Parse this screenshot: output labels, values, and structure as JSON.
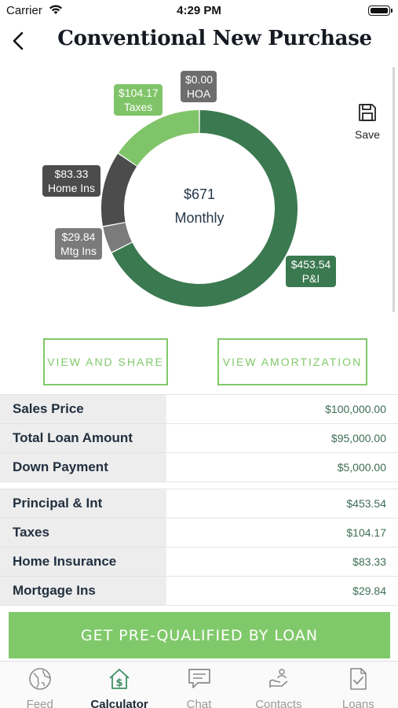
{
  "status": {
    "carrier": "Carrier",
    "time": "4:29 PM"
  },
  "nav": {
    "title": "Conventional New Purchase"
  },
  "save": {
    "label": "Save"
  },
  "chart_data": {
    "type": "pie",
    "center_value": "$671",
    "center_label": "Monthly",
    "slices": [
      {
        "name": "P&I",
        "value": 453.54,
        "label": "$453.54",
        "color": "#3b7950"
      },
      {
        "name": "Mtg Ins",
        "value": 29.84,
        "label": "$29.84",
        "color": "#7b7b7b"
      },
      {
        "name": "Home Ins",
        "value": 83.33,
        "label": "$83.33",
        "color": "#4c4c4c"
      },
      {
        "name": "Taxes",
        "value": 104.17,
        "label": "$104.17",
        "color": "#80c469"
      },
      {
        "name": "HOA",
        "value": 0.0,
        "label": "$0.00",
        "color": "#6d6d6d"
      }
    ]
  },
  "buttons": {
    "view_share": "VIEW AND SHARE",
    "view_amortization": "VIEW AMORTIZATION",
    "cta": "GET PRE-QUALIFIED BY LOAN"
  },
  "loan_rows": [
    {
      "label": "Sales Price",
      "value": "$100,000.00"
    },
    {
      "label": "Total Loan Amount",
      "value": "$95,000.00"
    },
    {
      "label": "Down Payment",
      "value": "$5,000.00"
    }
  ],
  "payment_rows": [
    {
      "label": "Principal & Int",
      "value": "$453.54"
    },
    {
      "label": "Taxes",
      "value": "$104.17"
    },
    {
      "label": "Home Insurance",
      "value": "$83.33"
    },
    {
      "label": "Mortgage Ins",
      "value": "$29.84"
    }
  ],
  "tabs": [
    {
      "label": "Feed",
      "icon": "globe-icon"
    },
    {
      "label": "Calculator",
      "icon": "calculator-icon"
    },
    {
      "label": "Chat",
      "icon": "chat-icon"
    },
    {
      "label": "Contacts",
      "icon": "contacts-icon"
    },
    {
      "label": "Loans",
      "icon": "loans-icon"
    }
  ],
  "active_tab": "Calculator"
}
